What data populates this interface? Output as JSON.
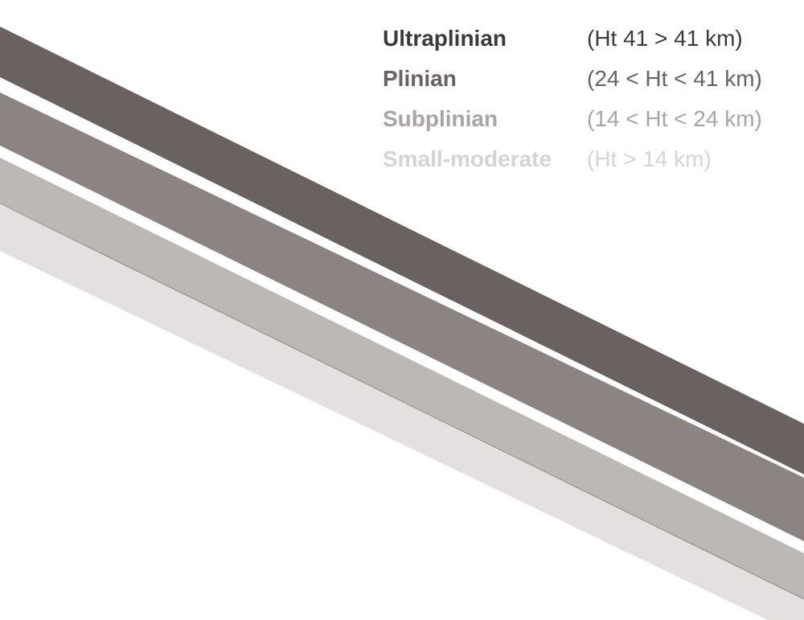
{
  "legend": {
    "items": [
      {
        "name": "Ultraplinian",
        "range": "(Ht 41 > 41 km)",
        "color": "#3f3a3a",
        "band_color": "#6a6261"
      },
      {
        "name": "Plinian",
        "range": "(24 < Ht < 41 km)",
        "color": "#6a6261",
        "band_color": "#8c8483"
      },
      {
        "name": "Subplinian",
        "range": "(14 < Ht < 24 km)",
        "color": "#aaa5a4",
        "band_color": "#bcb8b6"
      },
      {
        "name": "Small-moderate",
        "range": "(Ht > 14 km)",
        "color": "#d6d3d2",
        "band_color": "#e3e0df"
      }
    ]
  }
}
